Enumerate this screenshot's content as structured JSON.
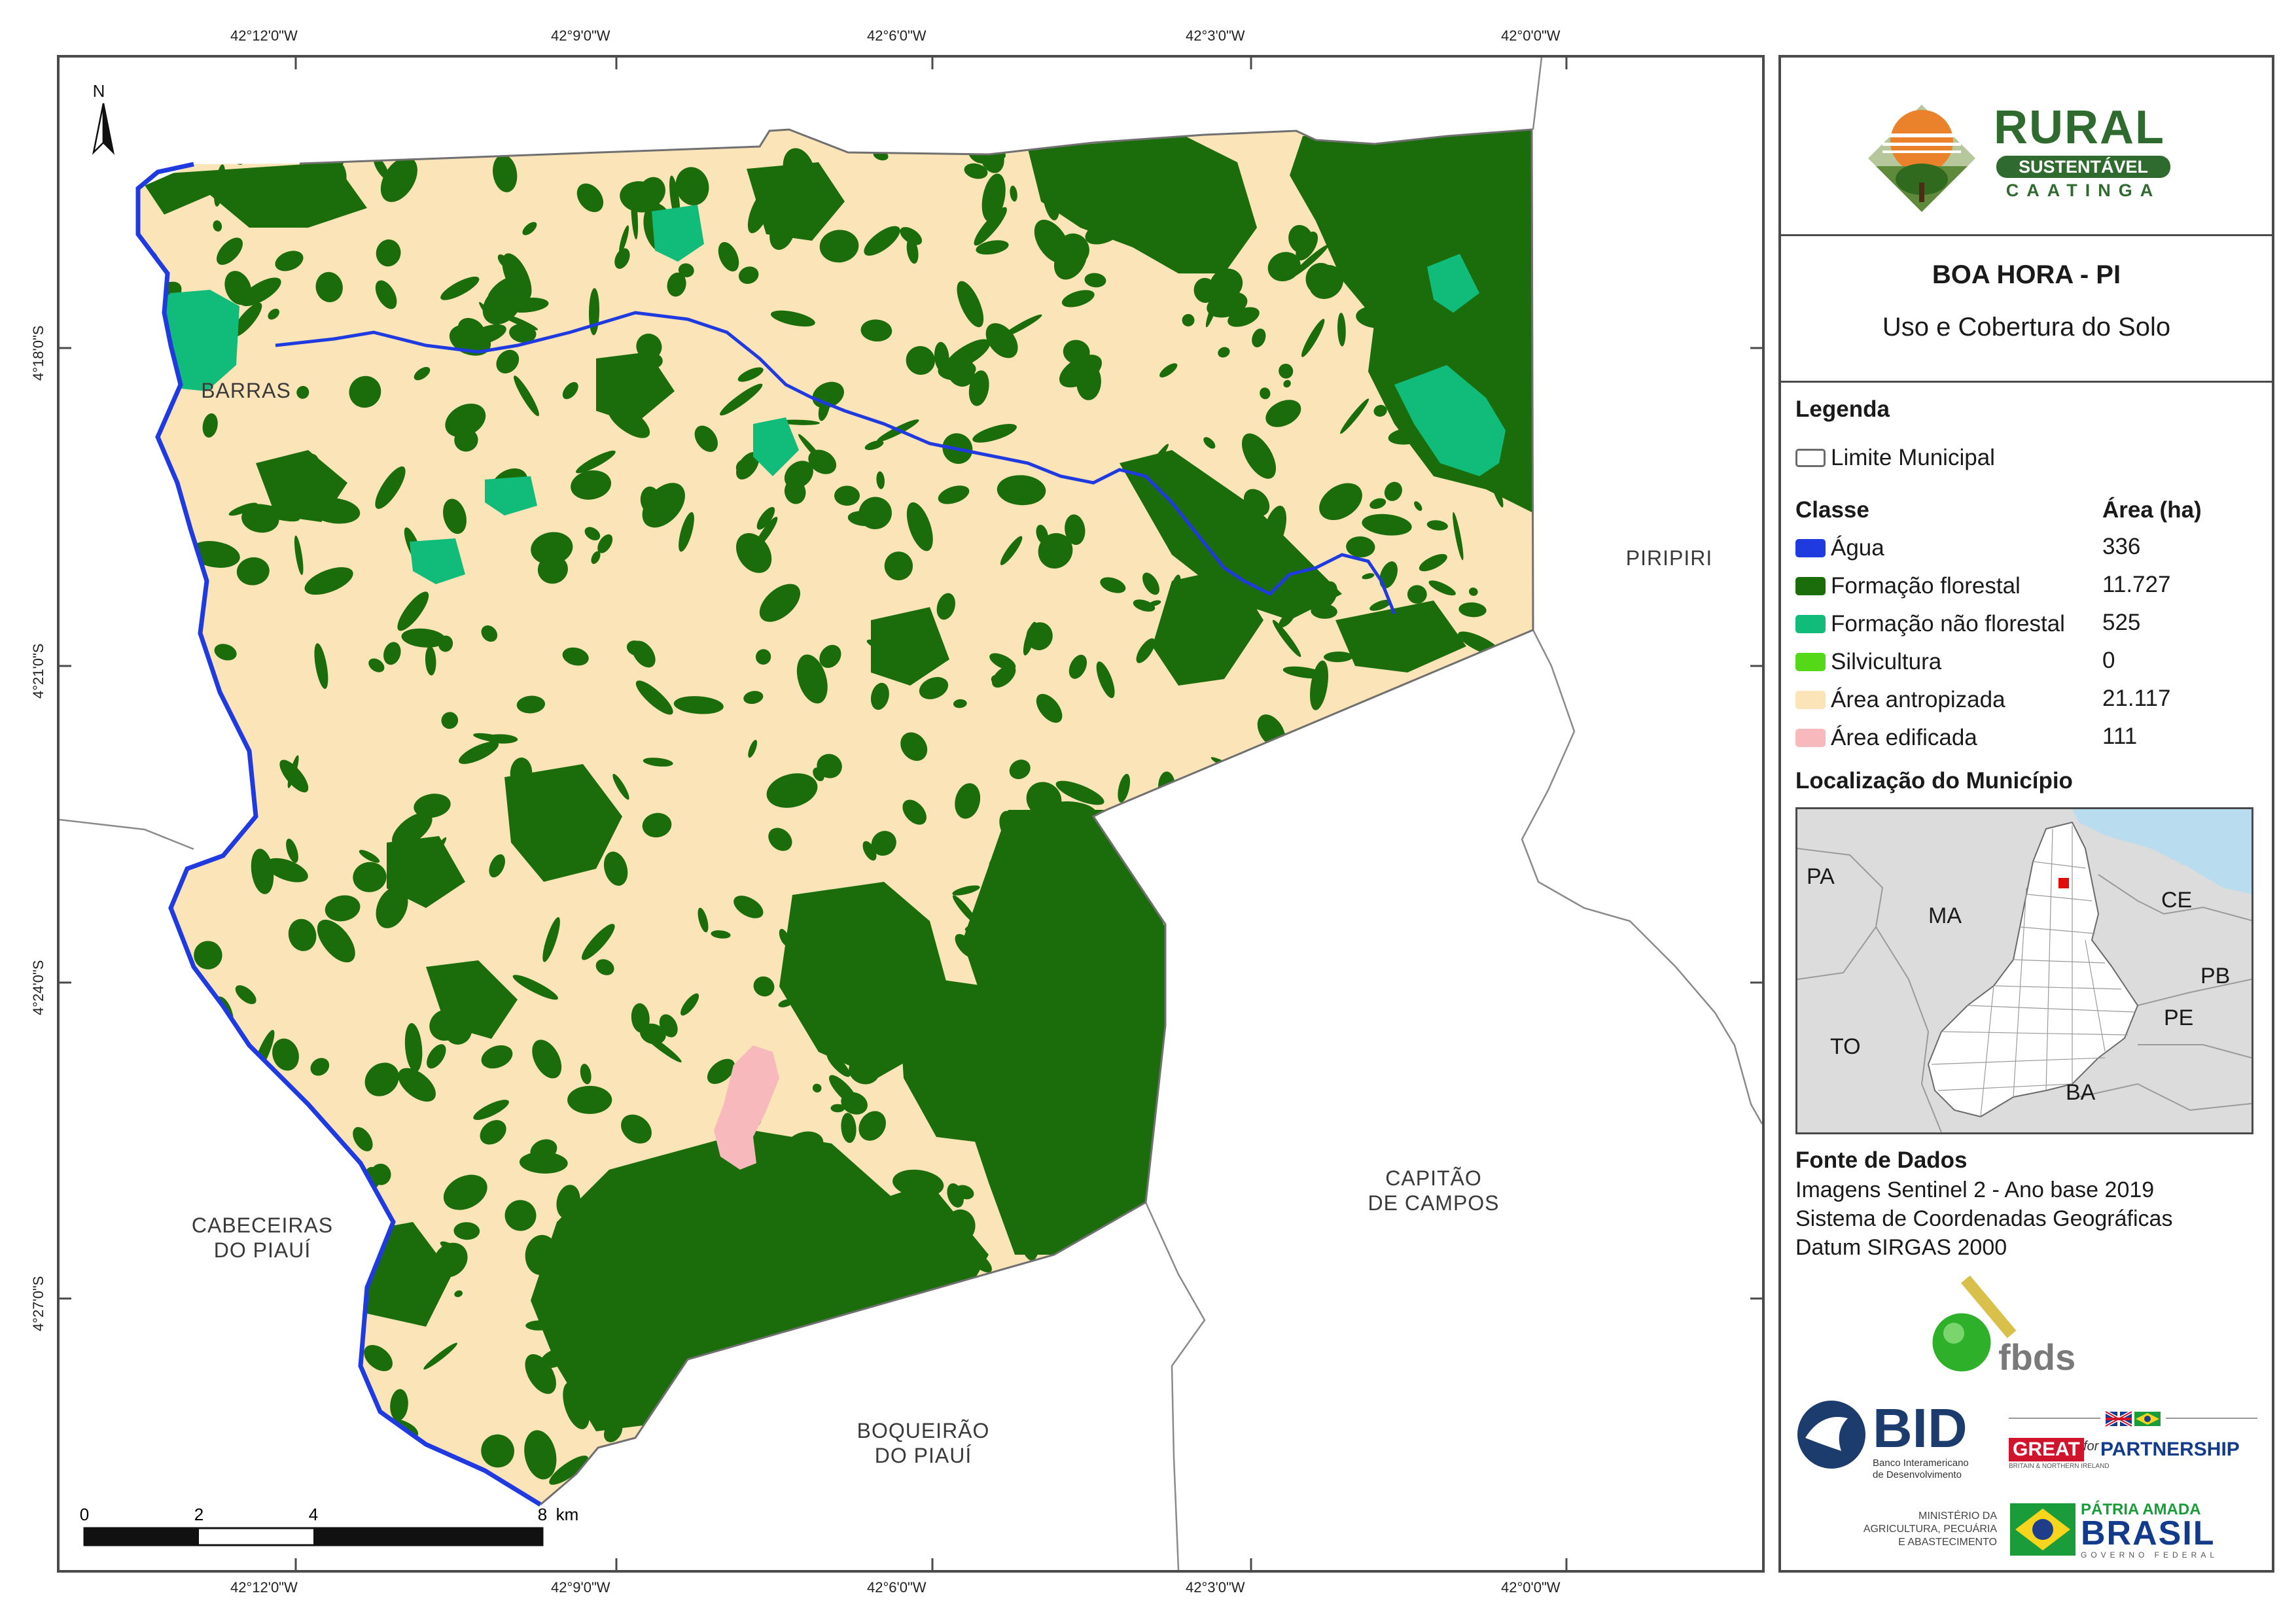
{
  "map": {
    "title": "BOA HORA - PI",
    "subtitle": "Uso e Cobertura do Solo",
    "north_label": "N",
    "coords_top": [
      "42°12'0\"W",
      "42°9'0\"W",
      "42°6'0\"W",
      "42°3'0\"W",
      "42°0'0\"W"
    ],
    "coords_bottom": [
      "42°12'0\"W",
      "42°9'0\"W",
      "42°6'0\"W",
      "42°3'0\"W",
      "42°0'0\"W"
    ],
    "coords_left": [
      "4°18'0\"S",
      "4°21'0\"S",
      "4°24'0\"S",
      "4°27'0\"S"
    ],
    "neighbors": {
      "barras": "BARRAS",
      "piripiri": "PIRIPIRI",
      "capitao_1": "CAPITÃO",
      "capitao_2": "DE CAMPOS",
      "cabeceiras_1": "CABECEIRAS",
      "cabeceiras_2": "DO PIAUÍ",
      "boqueirao_1": "BOQUEIRÃO",
      "boqueirao_2": "DO PIAUÍ"
    },
    "scale": {
      "ticks": [
        "0",
        "2",
        "4",
        "8"
      ],
      "unit": "km"
    }
  },
  "logo": {
    "line1": "RURAL",
    "line2": "SUSTENTÁVEL",
    "line3": "CAATINGA"
  },
  "legend": {
    "heading": "Legenda",
    "boundary_label": "Limite Municipal",
    "class_header": "Classe",
    "area_header": "Área (ha)",
    "items": [
      {
        "label": "Água",
        "area": "336",
        "color": "#1f3be0"
      },
      {
        "label": "Formação florestal",
        "area": "11.727",
        "color": "#1b6d0b"
      },
      {
        "label": "Formação não florestal",
        "area": "525",
        "color": "#11bb7a"
      },
      {
        "label": "Silvicultura",
        "area": "0",
        "color": "#55d818"
      },
      {
        "label": "Área antropizada",
        "area": "21.117",
        "color": "#fbe4b8"
      },
      {
        "label": "Área edificada",
        "area": "111",
        "color": "#f7b9bc"
      }
    ]
  },
  "location": {
    "heading": "Localização do Município",
    "states": [
      "PA",
      "MA",
      "CE",
      "PB",
      "PE",
      "TO",
      "BA"
    ]
  },
  "source": {
    "heading": "Fonte de Dados",
    "lines": [
      "Imagens Sentinel 2 - Ano base 2019",
      "Sistema de Coordenadas Geográficas",
      "Datum SIRGAS 2000"
    ]
  },
  "partners": {
    "fbds": "fbds",
    "bid": "BID",
    "bid_sub_1": "Banco Interamericano",
    "bid_sub_2": "de Desenvolvimento",
    "great_1": "GREAT",
    "great_2": "for",
    "great_3": "PARTNERSHIP",
    "great_sub": "BRITAIN & NORTHERN IRELAND",
    "ministerio_1": "MINISTÉRIO DA",
    "ministerio_2": "AGRICULTURA, PECUÁRIA",
    "ministerio_3": "E ABASTECIMENTO",
    "patria_1": "PÁTRIA AMADA",
    "patria_2": "BRASIL",
    "patria_3": "GOVERNO FEDERAL"
  }
}
